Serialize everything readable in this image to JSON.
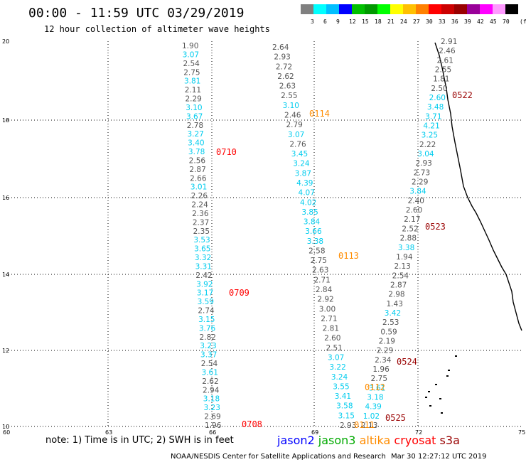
{
  "header": {
    "title": "00:00 - 11:59 UTC 03/29/2019",
    "subtitle": "12 hour collection of altimeter wave heights"
  },
  "legend": {
    "colors": [
      "#808080",
      "#00ffff",
      "#00bfff",
      "#0000ff",
      "#00c000",
      "#009900",
      "#00ff00",
      "#ffff00",
      "#ffc000",
      "#ff8000",
      "#ff0000",
      "#cc0000",
      "#990000",
      "#990099",
      "#ff00ff",
      "#ff99ff",
      "#000000"
    ],
    "labels": [
      "3",
      "6",
      "9",
      "12",
      "15",
      "18",
      "21",
      "24",
      "27",
      "30",
      "33",
      "36",
      "39",
      "42",
      "45",
      "70"
    ],
    "unit": "(ft)"
  },
  "axes": {
    "lon_ticks": [
      "60",
      "63",
      "66",
      "69",
      "72",
      "75"
    ],
    "lat_ticks": [
      "10",
      "12",
      "14",
      "16",
      "18",
      "20"
    ]
  },
  "tracks": [
    {
      "pass": "0710",
      "pass_color": "#ff0000",
      "values": [
        "1.90",
        "3.07",
        "2.54",
        "2.75",
        "3.81",
        "2.11",
        "2.29",
        "3.10",
        "3.67",
        "2.78",
        "3.27",
        "3.40",
        "3.78",
        "2.56",
        "2.87",
        "2.66",
        "3.01",
        "2.26",
        "2.24",
        "2.36",
        "2.37",
        "2.35",
        "3.53",
        "3.65",
        "3.32",
        "3.31",
        "2.42",
        "3.92",
        "3.17",
        "3.59",
        "2.74",
        "3.15",
        "3.76",
        "2.82",
        "3.23",
        "3.37",
        "2.54",
        "3.61",
        "2.62",
        "2.94",
        "3.18",
        "3.23",
        "2.69",
        "1.96"
      ],
      "colors": [
        "g",
        "c",
        "g",
        "g",
        "c",
        "g",
        "g",
        "c",
        "c",
        "g",
        "c",
        "c",
        "c",
        "g",
        "g",
        "g",
        "c",
        "g",
        "g",
        "g",
        "g",
        "g",
        "c",
        "c",
        "c",
        "c",
        "g",
        "c",
        "c",
        "c",
        "g",
        "c",
        "c",
        "g",
        "c",
        "c",
        "g",
        "c",
        "g",
        "g",
        "c",
        "c",
        "g",
        "g"
      ]
    },
    {
      "pass": "0114",
      "pass_color": "#ff8c00",
      "values": [
        "2.64",
        "2.93",
        "2.72",
        "2.62",
        "2.63",
        "2.55",
        "3.10",
        "2.46",
        "2.79",
        "3.07",
        "2.76",
        "3.45",
        "3.24",
        "3.87",
        "4.39",
        "4.07",
        "4.02",
        "3.85",
        "3.84",
        "3.66",
        "3.38",
        "2.58",
        "2.75",
        "2.63",
        "2.71",
        "2.84",
        "2.92",
        "3.00",
        "2.71",
        "2.81",
        "2.60",
        "2.51",
        "3.07",
        "3.22",
        "3.24",
        "3.55",
        "3.41",
        "3.58",
        "3.15",
        "2.93"
      ],
      "colors": [
        "g",
        "g",
        "g",
        "g",
        "g",
        "g",
        "c",
        "g",
        "g",
        "c",
        "g",
        "c",
        "c",
        "c",
        "c",
        "c",
        "c",
        "c",
        "c",
        "c",
        "c",
        "g",
        "g",
        "g",
        "g",
        "g",
        "g",
        "g",
        "g",
        "g",
        "g",
        "g",
        "c",
        "c",
        "c",
        "c",
        "c",
        "c",
        "c",
        "g"
      ]
    },
    {
      "pass": "0522",
      "pass_color": "#990000",
      "values": [
        "2.91",
        "2.46",
        "2.61",
        "2.55",
        "1.81",
        "2.50",
        "2.60",
        "3.48",
        "3.71",
        "4.21",
        "3.25",
        "2.22",
        "3.04",
        "2.93",
        "2.73",
        "2.29",
        "3.84",
        "2.40",
        "2.60",
        "2.17",
        "2.52",
        "2.88",
        "3.38",
        "1.94",
        "2.13",
        "2.54",
        "2.87",
        "2.98",
        "1.43",
        "3.42",
        "2.53",
        "0.59",
        "2.19",
        "2.29",
        "2.34",
        "1.96",
        "2.75",
        "3.61",
        "3.18",
        "4.39",
        "1.02",
        "2.13"
      ],
      "colors": [
        "g",
        "g",
        "g",
        "g",
        "g",
        "g",
        "c",
        "c",
        "c",
        "c",
        "c",
        "g",
        "c",
        "g",
        "g",
        "g",
        "c",
        "g",
        "g",
        "g",
        "g",
        "g",
        "c",
        "g",
        "g",
        "g",
        "g",
        "g",
        "g",
        "c",
        "g",
        "g",
        "g",
        "g",
        "g",
        "g",
        "g",
        "c",
        "c",
        "c",
        "c",
        "g"
      ]
    }
  ],
  "passes": [
    "0710",
    "0709",
    "0708",
    "0114",
    "0113",
    "0112",
    "0111",
    "0522",
    "0523",
    "0524",
    "0525"
  ],
  "footer": {
    "note": "note: 1) Time is in UTC; 2) SWH is in feet",
    "satellites": [
      {
        "name": "jason2",
        "color": "#0000ff"
      },
      {
        "name": "jason3",
        "color": "#00aa00"
      },
      {
        "name": "altika",
        "color": "#ff8c00"
      },
      {
        "name": "cryosat",
        "color": "#ff0000"
      },
      {
        "name": "s3a",
        "color": "#990000"
      }
    ],
    "credit": "NOAA/NESDIS Center for Satellite Applications and Research",
    "timestamp": "Mar 30 12:27:12 UTC 2019"
  }
}
